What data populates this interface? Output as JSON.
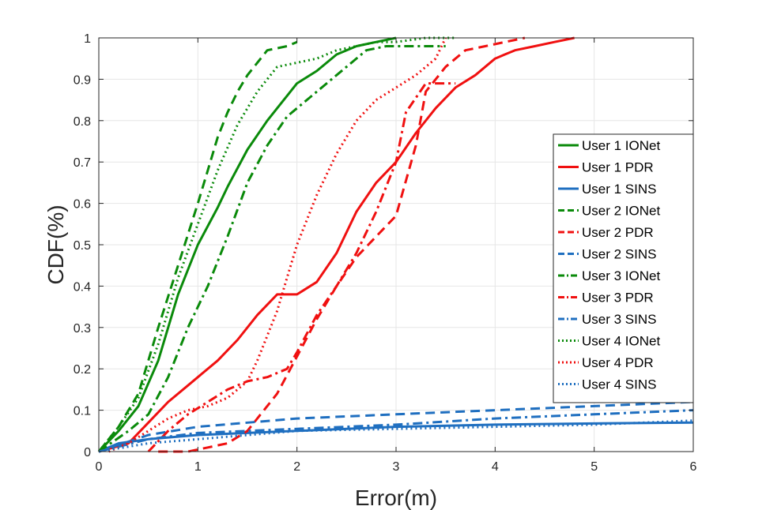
{
  "chart_data": {
    "type": "line",
    "title": "",
    "xlabel": "Error(m)",
    "ylabel": "CDF(%)",
    "xlim": [
      0,
      6
    ],
    "ylim": [
      0,
      1
    ],
    "x_ticks": [
      0,
      1,
      2,
      3,
      4,
      5,
      6
    ],
    "y_ticks": [
      0,
      0.1,
      0.2,
      0.3,
      0.4,
      0.5,
      0.6,
      0.7,
      0.8,
      0.9,
      1
    ],
    "grid": true,
    "legend_position": "right",
    "colors": {
      "IONet": "#0a8a0a",
      "PDR": "#f01010",
      "SINS": "#1f6fc0"
    },
    "series": [
      {
        "name": "User 1 IONet",
        "method": "IONet",
        "dash": "solid",
        "x": [
          0,
          0.2,
          0.4,
          0.6,
          0.8,
          1.0,
          1.2,
          1.3,
          1.5,
          1.7,
          1.9,
          2.0,
          2.2,
          2.4,
          2.6,
          2.8,
          3.0
        ],
        "y": [
          0,
          0.05,
          0.11,
          0.22,
          0.38,
          0.5,
          0.59,
          0.64,
          0.73,
          0.8,
          0.86,
          0.89,
          0.92,
          0.96,
          0.98,
          0.99,
          1.0
        ]
      },
      {
        "name": "User 1 PDR",
        "method": "PDR",
        "dash": "solid",
        "x": [
          0,
          0.3,
          0.5,
          0.7,
          0.9,
          1.0,
          1.2,
          1.4,
          1.6,
          1.8,
          2.0,
          2.2,
          2.4,
          2.6,
          2.8,
          3.0,
          3.2,
          3.4,
          3.6,
          3.8,
          4.0,
          4.2,
          4.4,
          4.6,
          4.8
        ],
        "y": [
          0,
          0.02,
          0.07,
          0.12,
          0.16,
          0.18,
          0.22,
          0.27,
          0.33,
          0.38,
          0.38,
          0.41,
          0.48,
          0.58,
          0.65,
          0.7,
          0.77,
          0.83,
          0.88,
          0.91,
          0.95,
          0.97,
          0.98,
          0.99,
          1.0
        ]
      },
      {
        "name": "User 1 SINS",
        "method": "SINS",
        "dash": "solid",
        "x": [
          0,
          0.2,
          0.5,
          1,
          2,
          3,
          4,
          5,
          6
        ],
        "y": [
          0,
          0.02,
          0.03,
          0.04,
          0.05,
          0.06,
          0.065,
          0.068,
          0.07
        ]
      },
      {
        "name": "User 2 IONet",
        "method": "IONet",
        "dash": "dashed",
        "x": [
          0,
          0.2,
          0.4,
          0.6,
          0.8,
          1.0,
          1.1,
          1.2,
          1.3,
          1.4,
          1.5,
          1.7,
          1.9,
          2.0
        ],
        "y": [
          0,
          0.06,
          0.14,
          0.3,
          0.45,
          0.6,
          0.68,
          0.76,
          0.82,
          0.87,
          0.91,
          0.97,
          0.98,
          0.99
        ]
      },
      {
        "name": "User 2 PDR",
        "method": "PDR",
        "dash": "dashed",
        "x": [
          0.6,
          0.9,
          1.1,
          1.3,
          1.5,
          1.8,
          2.0,
          2.2,
          2.4,
          2.6,
          2.8,
          3.0,
          3.2,
          3.3,
          3.5,
          3.7,
          3.9,
          4.1,
          4.3
        ],
        "y": [
          0,
          0,
          0.01,
          0.02,
          0.05,
          0.14,
          0.23,
          0.32,
          0.4,
          0.47,
          0.52,
          0.57,
          0.74,
          0.87,
          0.93,
          0.97,
          0.98,
          0.99,
          1.0
        ]
      },
      {
        "name": "User 2 SINS",
        "method": "SINS",
        "dash": "dashed",
        "x": [
          0,
          0.5,
          1,
          2,
          3,
          4,
          5,
          6
        ],
        "y": [
          0,
          0.04,
          0.06,
          0.08,
          0.09,
          0.1,
          0.11,
          0.12
        ]
      },
      {
        "name": "User 3 IONet",
        "method": "IONet",
        "dash": "dashdot",
        "x": [
          0,
          0.3,
          0.5,
          0.7,
          0.9,
          1.1,
          1.3,
          1.5,
          1.7,
          1.9,
          2.1,
          2.3,
          2.5,
          2.7,
          2.9,
          3.2,
          3.5
        ],
        "y": [
          0,
          0.05,
          0.09,
          0.18,
          0.3,
          0.4,
          0.52,
          0.65,
          0.74,
          0.81,
          0.85,
          0.89,
          0.93,
          0.97,
          0.98,
          0.98,
          0.98
        ]
      },
      {
        "name": "User 3 PDR",
        "method": "PDR",
        "dash": "dashdot",
        "x": [
          0.5,
          0.7,
          0.9,
          1.1,
          1.3,
          1.5,
          1.7,
          1.9,
          2.0,
          2.2,
          2.4,
          2.6,
          2.8,
          3.0,
          3.1,
          3.3,
          3.5,
          3.6
        ],
        "y": [
          0,
          0.05,
          0.09,
          0.12,
          0.15,
          0.17,
          0.18,
          0.2,
          0.24,
          0.33,
          0.4,
          0.48,
          0.58,
          0.7,
          0.82,
          0.89,
          0.89,
          0.89
        ]
      },
      {
        "name": "User 3 SINS",
        "method": "SINS",
        "dash": "dashdot",
        "x": [
          0,
          0.5,
          1,
          2,
          3,
          4,
          5,
          6
        ],
        "y": [
          0,
          0.03,
          0.045,
          0.055,
          0.065,
          0.08,
          0.09,
          0.1
        ]
      },
      {
        "name": "User 4 IONet",
        "method": "IONet",
        "dash": "dotted",
        "x": [
          0,
          0.2,
          0.4,
          0.6,
          0.8,
          1.0,
          1.2,
          1.4,
          1.6,
          1.8,
          2.0,
          2.2,
          2.4,
          2.6,
          2.8,
          3.0,
          3.3,
          3.6
        ],
        "y": [
          0,
          0.06,
          0.13,
          0.26,
          0.42,
          0.55,
          0.68,
          0.79,
          0.87,
          0.93,
          0.94,
          0.95,
          0.97,
          0.98,
          0.99,
          0.99,
          1.0,
          1.0
        ]
      },
      {
        "name": "User 4 PDR",
        "method": "PDR",
        "dash": "dotted",
        "x": [
          0.1,
          0.3,
          0.5,
          0.7,
          0.9,
          1.1,
          1.3,
          1.5,
          1.6,
          1.7,
          1.8,
          1.9,
          2.0,
          2.2,
          2.4,
          2.6,
          2.8,
          3.0,
          3.2,
          3.4,
          3.5
        ],
        "y": [
          0,
          0.02,
          0.05,
          0.08,
          0.1,
          0.11,
          0.13,
          0.17,
          0.22,
          0.28,
          0.34,
          0.42,
          0.5,
          0.62,
          0.72,
          0.8,
          0.85,
          0.88,
          0.91,
          0.95,
          1.0
        ]
      },
      {
        "name": "User 4 SINS",
        "method": "SINS",
        "dash": "dotted",
        "x": [
          0,
          0.5,
          1,
          2,
          3,
          4,
          5,
          6
        ],
        "y": [
          0,
          0.02,
          0.03,
          0.05,
          0.055,
          0.06,
          0.065,
          0.075
        ]
      }
    ]
  }
}
